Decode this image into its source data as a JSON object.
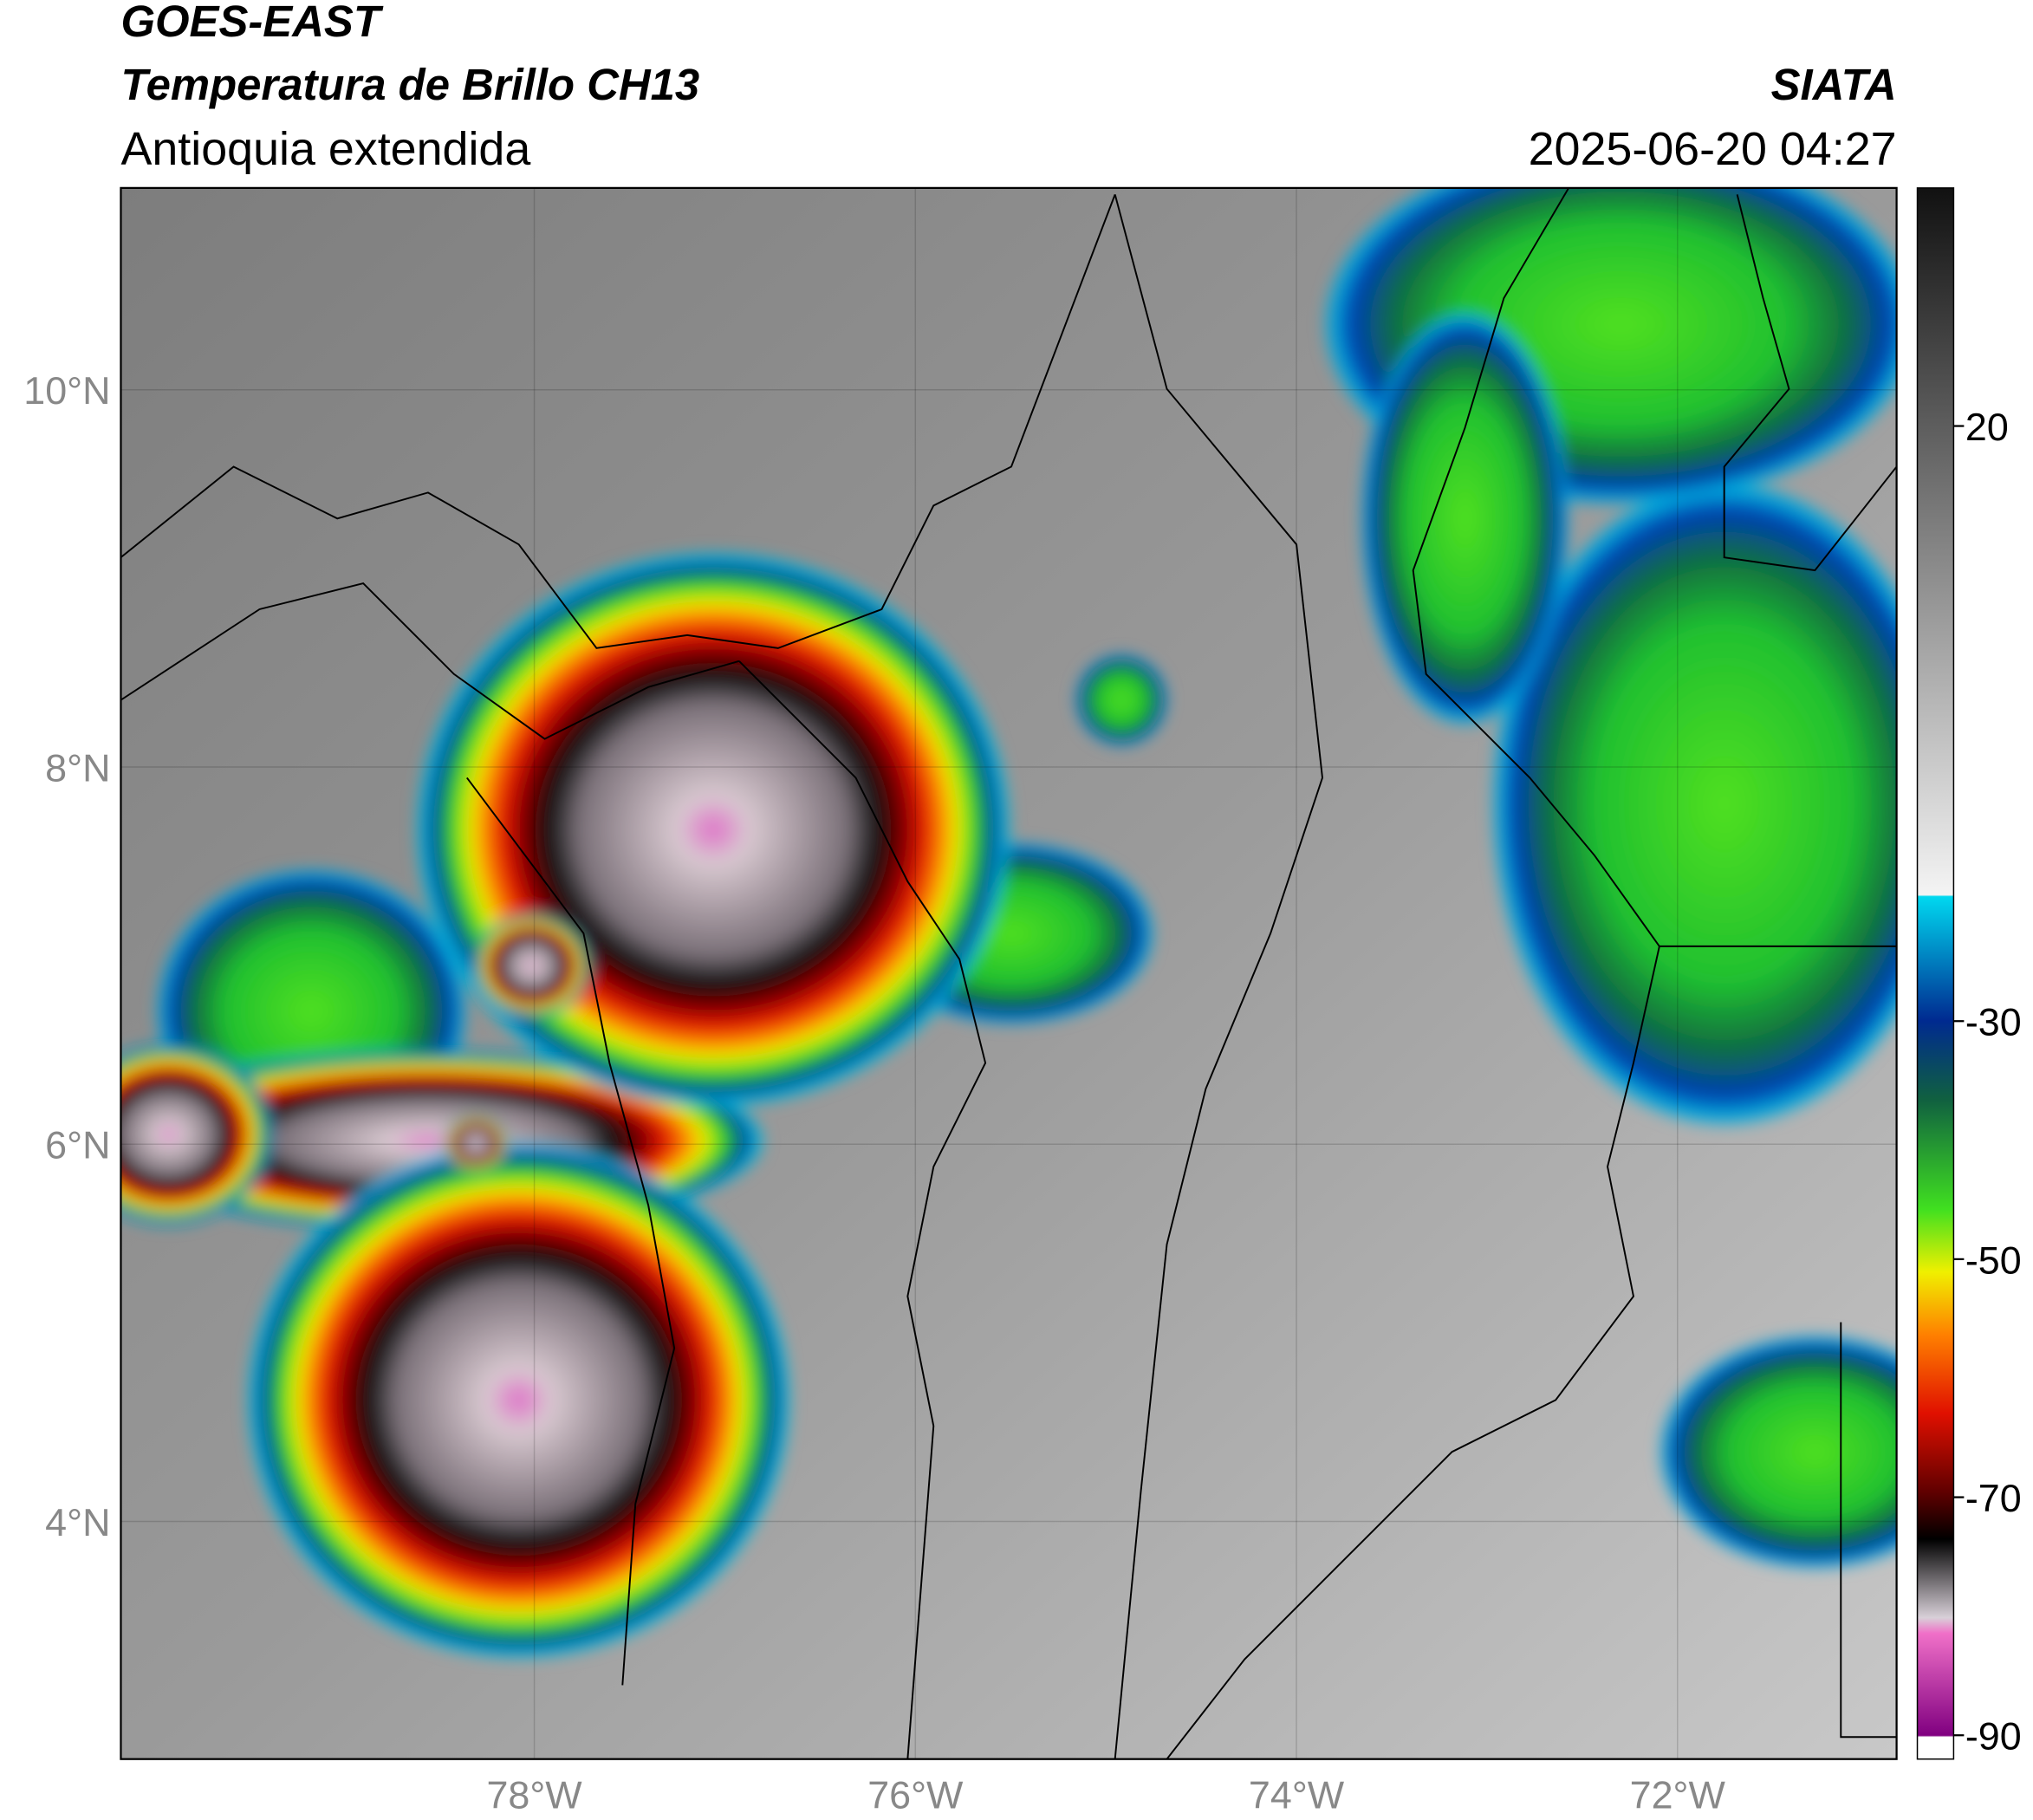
{
  "header": {
    "satellite": "GOES-EAST",
    "product": "Temperatura de Brillo CH13",
    "region": "Antioquia extendida",
    "source": "SIATA",
    "datetime": "2025-06-20 04:27"
  },
  "map": {
    "lon_range": [
      -80.17,
      -70.85
    ],
    "lat_range": [
      2.74,
      11.07
    ],
    "lat_ticks": [
      {
        "value": 10,
        "label": "10°N"
      },
      {
        "value": 8,
        "label": "8°N"
      },
      {
        "value": 6,
        "label": "6°N"
      },
      {
        "value": 4,
        "label": "4°N"
      }
    ],
    "lon_ticks": [
      {
        "value": -78,
        "label": "78°W"
      },
      {
        "value": -76,
        "label": "76°W"
      },
      {
        "value": -74,
        "label": "74°W"
      },
      {
        "value": -72,
        "label": "72°W"
      }
    ]
  },
  "colorbar": {
    "range": [
      -92,
      40
    ],
    "ticks": [
      20,
      -30,
      -50,
      -70,
      -90
    ]
  }
}
